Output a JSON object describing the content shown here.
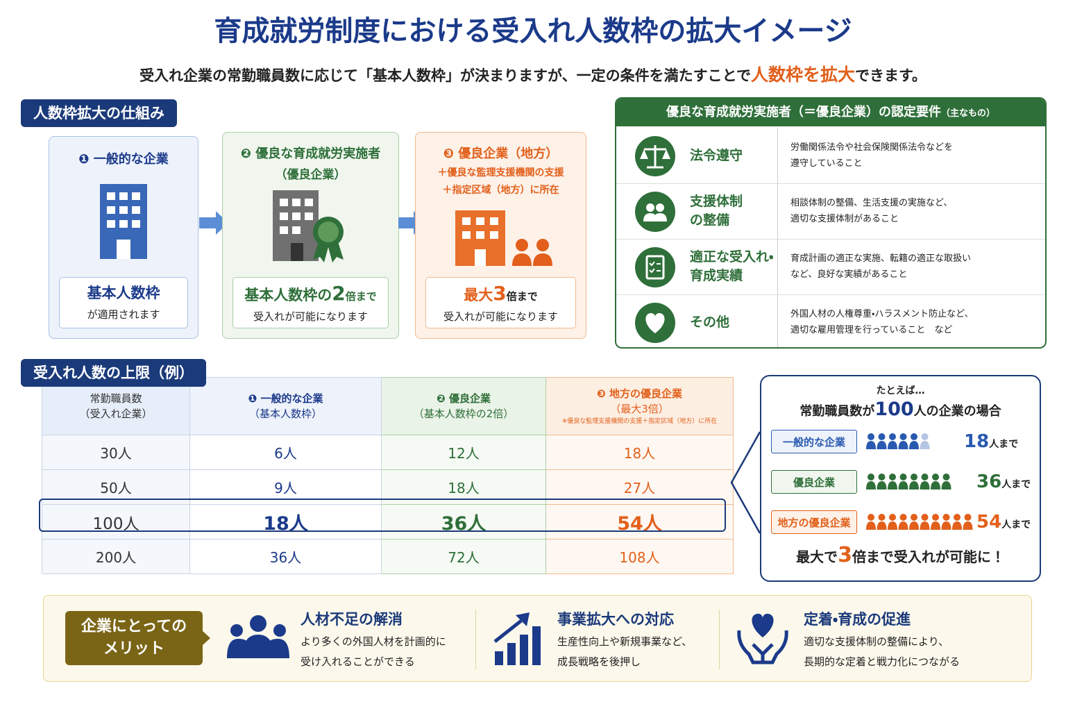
{
  "header": {
    "title": "育成就労制度における受入れ人数枠の拡大イメージ",
    "subtitle": [
      "受入れ企業の常勤職員数に応じて「基本人数枠」が決まりますが、一定の条件を満たすことで",
      "人数枠を拡大",
      "できます。"
    ]
  },
  "mechanism": {
    "label": "人数枠拡大の仕組み",
    "cards": [
      {
        "title": "❶ 一般的な企業",
        "result": [
          "基本人数枠"
        ],
        "note": "が適用されます"
      },
      {
        "title": "❷ 優良な育成就労実施者",
        "subtitle": "（優良企業）",
        "result": [
          "基本人数枠の",
          "2",
          "倍まで"
        ],
        "note": "受入れが可能になります"
      },
      {
        "title": "❸ 優良企業（地方）",
        "conditions": [
          "＋優良な監理支援機関の支援",
          "＋指定区域（地方）に所在"
        ],
        "result": [
          "最大",
          "3",
          "倍まで"
        ],
        "note": "受入れが可能になります"
      }
    ]
  },
  "requirements": {
    "title": "優良な育成就労実施者（＝優良企業）の認定要件",
    "title_note": "（主なもの）",
    "items": [
      {
        "name": [
          "法令遵守"
        ],
        "desc": [
          "労働関係法令や社会保険関係法令などを",
          "遵守していること"
        ]
      },
      {
        "name": [
          "支援体制",
          "の整備"
        ],
        "desc": [
          "相談体制の整備、生活支援の実施など、",
          "適切な支援体制があること"
        ]
      },
      {
        "name": [
          "適正な受入れ・",
          "育成実績"
        ],
        "desc": [
          "育成計画の適正な実施、転籍の適正な取扱い",
          "など、良好な実績があること"
        ]
      },
      {
        "name": [
          "その他"
        ],
        "desc": [
          "外国人材の人権尊重・ハラスメント防止など、",
          "適切な雇用管理を行っていること　など"
        ]
      }
    ]
  },
  "limits": {
    "label": "受入れ人数の上限（例）",
    "columns": [
      [
        "常勤職員数",
        "（受入れ企業）"
      ],
      [
        "❶ 一般的な企業",
        "（基本人数枠）"
      ],
      [
        "❷ 優良企業",
        "（基本人数枠の2倍）"
      ],
      [
        "❸ 地方の優良企業",
        "（最大3倍）",
        "※優良な監理支援機関の支援＋指定区域（地方）に所在"
      ]
    ],
    "rows": [
      [
        "30人",
        "6人",
        "12人",
        "18人"
      ],
      [
        "50人",
        "9人",
        "18人",
        "27人"
      ],
      [
        "100人",
        "18人",
        "36人",
        "54人"
      ],
      [
        "200人",
        "36人",
        "72人",
        "108人"
      ]
    ]
  },
  "example": {
    "intro": "たとえば…",
    "heading": [
      "常勤職員数が",
      "100",
      "人の企業の場合"
    ],
    "rows": [
      {
        "label": "一般的な企業",
        "value": [
          "18",
          "人まで"
        ]
      },
      {
        "label": "優良企業",
        "value": [
          "36",
          "人まで"
        ]
      },
      {
        "label": "地方の優良企業",
        "value": [
          "54",
          "人まで"
        ]
      }
    ],
    "footer": [
      "最大で",
      "3",
      "倍まで受入れが可能に！"
    ]
  },
  "merits": {
    "label": [
      "企業にとっての",
      "メリット"
    ],
    "items": [
      {
        "title": "人材不足の解消",
        "desc": [
          "より多くの外国人材を計画的に",
          "受け入れることができる"
        ]
      },
      {
        "title": "事業拡大への対応",
        "desc": [
          "生産性向上や新規事業など、",
          "成長戦略を後押し"
        ]
      },
      {
        "title": "定着・育成の促進",
        "desc": [
          "適切な支援体制の整備により、",
          "長期的な定着と戦力化につながる"
        ]
      }
    ]
  }
}
